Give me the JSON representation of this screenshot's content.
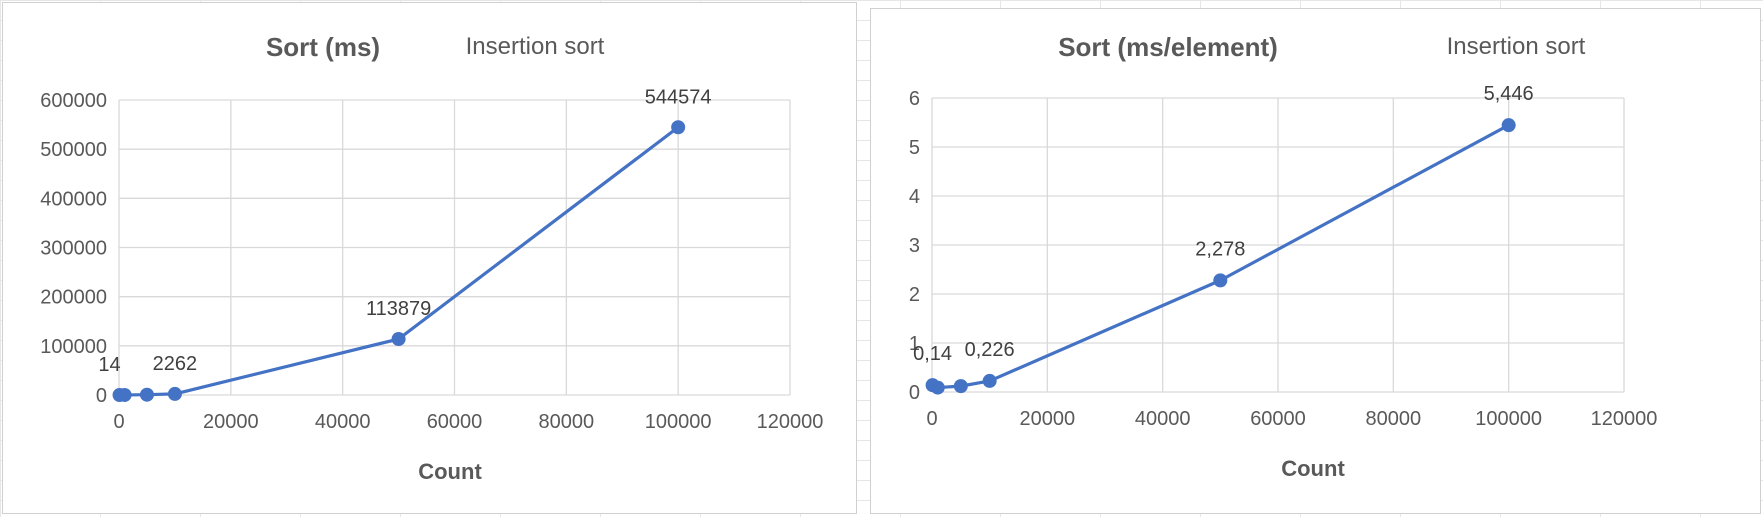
{
  "chart_data": [
    {
      "type": "scatter",
      "title": "Sort (ms)",
      "subtitle": "Insertion sort",
      "xlabel": "Count",
      "ylabel": "",
      "xlim": [
        0,
        120000
      ],
      "ylim": [
        0,
        600000
      ],
      "x_ticks": [
        "0",
        "20000",
        "40000",
        "60000",
        "80000",
        "100000",
        "120000"
      ],
      "y_ticks": [
        "0",
        "100000",
        "200000",
        "300000",
        "400000",
        "500000",
        "600000"
      ],
      "grid": true,
      "series": [
        {
          "x": [
            100,
            1000,
            5000,
            10000,
            50000,
            100000
          ],
          "y": [
            14,
            90,
            600,
            2262,
            113879,
            544574
          ],
          "labels": [
            "14",
            "",
            "",
            "2262",
            "113879",
            "544574"
          ]
        }
      ]
    },
    {
      "type": "scatter",
      "title": "Sort (ms/element)",
      "subtitle": "Insertion sort",
      "xlabel": "Count",
      "ylabel": "",
      "xlim": [
        0,
        120000
      ],
      "ylim": [
        0,
        6
      ],
      "x_ticks": [
        "0",
        "20000",
        "40000",
        "60000",
        "80000",
        "100000",
        "120000"
      ],
      "y_ticks": [
        "0",
        "1",
        "2",
        "3",
        "4",
        "5",
        "6"
      ],
      "grid": true,
      "series": [
        {
          "x": [
            100,
            1000,
            5000,
            10000,
            50000,
            100000
          ],
          "y": [
            0.14,
            0.09,
            0.12,
            0.226,
            2.278,
            5.446
          ],
          "labels": [
            "0,14",
            "",
            "",
            "0,226",
            "2,278",
            "5,446"
          ]
        }
      ]
    }
  ]
}
